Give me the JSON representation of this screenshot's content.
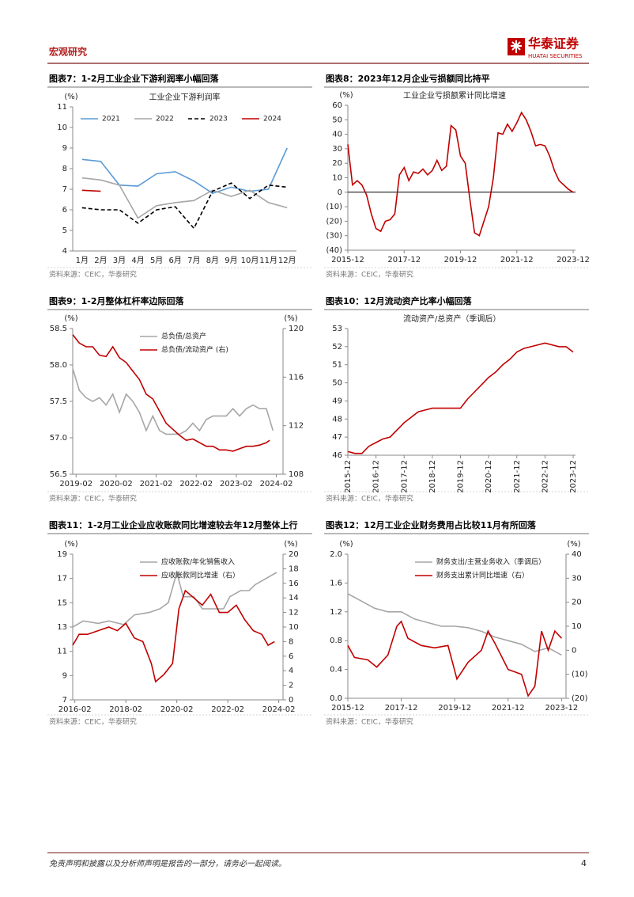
{
  "header": {
    "section": "宏观研究",
    "logo_name": "华泰证券",
    "logo_sub": "HUATAI SECURITIES"
  },
  "footer": {
    "disclaimer": "免责声明和披露以及分析师声明是报告的一部分，请务必一起阅读。",
    "page": 4
  },
  "chart_data": [
    {
      "type": "line",
      "figure_title": "图表7：1-2月工业企业下游利润率小幅回落",
      "title": "工业企业下游利润率",
      "source": "资料来源：CEIC，华泰研究",
      "y_unit": "(%)",
      "categories": [
        "1月",
        "2月",
        "3月",
        "4月",
        "5月",
        "6月",
        "7月",
        "8月",
        "9月",
        "10月",
        "11月",
        "12月"
      ],
      "ylim": [
        4,
        11
      ],
      "yticks": [
        4,
        5,
        6,
        7,
        8,
        9,
        10,
        11
      ],
      "legend": "top",
      "series": [
        {
          "name": "2021",
          "color": "#5b9bd5",
          "values": [
            8.45,
            8.35,
            7.2,
            7.15,
            7.75,
            7.85,
            7.4,
            6.8,
            7.1,
            6.9,
            7.0,
            9.0
          ]
        },
        {
          "name": "2022",
          "color": "#a6a6a6",
          "values": [
            7.55,
            7.45,
            7.2,
            5.6,
            6.2,
            6.35,
            6.45,
            6.95,
            6.65,
            6.95,
            6.35,
            6.1
          ]
        },
        {
          "name": "2023",
          "color": "#000000",
          "style": "dashed",
          "values": [
            6.1,
            6.0,
            6.0,
            5.35,
            6.0,
            6.15,
            5.1,
            6.9,
            7.3,
            6.55,
            7.2,
            7.1
          ]
        },
        {
          "name": "2024",
          "color": "#c00000",
          "values": [
            6.95,
            6.9,
            null,
            null,
            null,
            null,
            null,
            null,
            null,
            null,
            null,
            null
          ]
        }
      ]
    },
    {
      "type": "line",
      "figure_title": "图表8：2023年12月企业亏损额同比持平",
      "title": "工业企业亏损额累计同比增速",
      "source": "资料来源：CEIC，华泰研究",
      "y_unit": "(%)",
      "xlim": [
        "2015-12",
        "2024-01"
      ],
      "xticks": [
        "2015-12",
        "2017-12",
        "2019-12",
        "2021-12",
        "2023-12"
      ],
      "ylim": [
        -40,
        60
      ],
      "yticks": [
        {
          "value": -40,
          "label": "(40)"
        },
        {
          "value": -30,
          "label": "(30)"
        },
        {
          "value": -20,
          "label": "(20)"
        },
        {
          "value": -10,
          "label": "(10)"
        },
        0,
        10,
        20,
        30,
        40,
        50,
        60
      ],
      "series": [
        {
          "color": "#c00000",
          "x": [
            "2015-12",
            "2016-02",
            "2016-04",
            "2016-06",
            "2016-08",
            "2016-10",
            "2016-12",
            "2017-02",
            "2017-04",
            "2017-06",
            "2017-08",
            "2017-10",
            "2017-12",
            "2018-02",
            "2018-04",
            "2018-06",
            "2018-08",
            "2018-10",
            "2018-12",
            "2019-02",
            "2019-04",
            "2019-06",
            "2019-08",
            "2019-10",
            "2019-12",
            "2020-02",
            "2020-04",
            "2020-06",
            "2020-08",
            "2020-10",
            "2020-12",
            "2021-02",
            "2021-04",
            "2021-06",
            "2021-08",
            "2021-10",
            "2021-12",
            "2022-02",
            "2022-04",
            "2022-06",
            "2022-08",
            "2022-10",
            "2022-12",
            "2023-02",
            "2023-04",
            "2023-06",
            "2023-08",
            "2023-10",
            "2023-12"
          ],
          "values": [
            33,
            5,
            8,
            5,
            -2,
            -15,
            -25,
            -27,
            -20,
            -19,
            -15,
            12,
            17,
            8,
            14,
            13,
            16,
            12,
            15,
            22,
            15,
            18,
            46,
            43,
            25,
            20,
            -5,
            -28,
            -30,
            -20,
            -10,
            10,
            41,
            40,
            47,
            42,
            48,
            55,
            50,
            42,
            32,
            33,
            32,
            25,
            15,
            8,
            5,
            2,
            0
          ]
        }
      ]
    },
    {
      "type": "line",
      "figure_title": "图表9：1-2月整体杠杆率边际回落",
      "source": "资料来源：CEIC，华泰研究",
      "y_unit": "(%)",
      "y2_unit": "(%)",
      "xlim": [
        "2019-01",
        "2024-04"
      ],
      "xticks": [
        "2019-02",
        "2020-02",
        "2021-02",
        "2022-02",
        "2023-02",
        "2024-02"
      ],
      "ylim": [
        56.5,
        58.5
      ],
      "yticks": [
        56.5,
        {
          "value": 57,
          "label": "57.0"
        },
        57.5,
        {
          "value": 58,
          "label": "58.0"
        },
        58.5
      ],
      "y2lim": [
        108,
        120
      ],
      "y2ticks": [
        108,
        112,
        116,
        120
      ],
      "legend": "upper left",
      "series": [
        {
          "name": "总负债/总资产",
          "color": "#a6a6a6",
          "x": [
            "2019-01",
            "2019-03",
            "2019-05",
            "2019-07",
            "2019-09",
            "2019-11",
            "2020-01",
            "2020-03",
            "2020-05",
            "2020-07",
            "2020-09",
            "2020-11",
            "2021-01",
            "2021-03",
            "2021-05",
            "2021-07",
            "2021-09",
            "2021-11",
            "2022-01",
            "2022-03",
            "2022-05",
            "2022-07",
            "2022-09",
            "2022-11",
            "2023-01",
            "2023-03",
            "2023-05",
            "2023-07",
            "2023-09",
            "2023-11",
            "2024-01"
          ],
          "values": [
            57.95,
            57.65,
            57.55,
            57.5,
            57.55,
            57.45,
            57.6,
            57.35,
            57.6,
            57.5,
            57.35,
            57.1,
            57.3,
            57.1,
            57.05,
            57.05,
            57.05,
            57.1,
            57.2,
            57.1,
            57.25,
            57.3,
            57.3,
            57.3,
            57.4,
            57.3,
            57.4,
            57.45,
            57.4,
            57.4,
            57.1
          ]
        },
        {
          "name": "总负债/流动资产 (右)",
          "color": "#c00000",
          "axis": "y2",
          "x": [
            "2019-01",
            "2019-03",
            "2019-05",
            "2019-07",
            "2019-09",
            "2019-11",
            "2020-01",
            "2020-03",
            "2020-05",
            "2020-07",
            "2020-09",
            "2020-11",
            "2021-01",
            "2021-03",
            "2021-05",
            "2021-07",
            "2021-09",
            "2021-11",
            "2022-01",
            "2022-03",
            "2022-05",
            "2022-07",
            "2022-09",
            "2022-11",
            "2023-01",
            "2023-03",
            "2023-05",
            "2023-07",
            "2023-09",
            "2023-11",
            "2023-12"
          ],
          "values": [
            119.5,
            118.8,
            118.5,
            118.5,
            117.8,
            117.7,
            118.5,
            117.6,
            117.2,
            116.5,
            115.8,
            114.6,
            114.2,
            113.2,
            112.2,
            111.7,
            111.2,
            110.8,
            110.9,
            110.6,
            110.3,
            110.3,
            110.0,
            110.0,
            109.9,
            110.1,
            110.3,
            110.3,
            110.4,
            110.6,
            110.8
          ]
        }
      ]
    },
    {
      "type": "line",
      "figure_title": "图表10：12月流动资产比率小幅回落",
      "title": "流动资产/总资产（季调后）",
      "source": "资料来源：CEIC，华泰研究",
      "xlim": [
        "2015-12",
        "2024-01"
      ],
      "xticks": [
        "2015-12",
        "2016-12",
        "2017-12",
        "2018-12",
        "2019-12",
        "2020-12",
        "2021-12",
        "2022-12",
        "2023-12"
      ],
      "ylim": [
        46,
        53
      ],
      "yticks": [
        46,
        47,
        48,
        49,
        50,
        51,
        52,
        53
      ],
      "series": [
        {
          "color": "#c00000",
          "x": [
            "2015-12",
            "2016-03",
            "2016-06",
            "2016-09",
            "2016-12",
            "2017-03",
            "2017-06",
            "2017-09",
            "2017-12",
            "2018-03",
            "2018-06",
            "2018-09",
            "2018-12",
            "2019-03",
            "2019-06",
            "2019-09",
            "2019-12",
            "2020-03",
            "2020-06",
            "2020-09",
            "2020-12",
            "2021-03",
            "2021-06",
            "2021-09",
            "2021-12",
            "2022-03",
            "2022-06",
            "2022-09",
            "2022-12",
            "2023-03",
            "2023-06",
            "2023-09",
            "2023-12"
          ],
          "values": [
            46.2,
            46.1,
            46.1,
            46.5,
            46.7,
            46.9,
            47.0,
            47.4,
            47.8,
            48.1,
            48.4,
            48.5,
            48.6,
            48.6,
            48.6,
            48.6,
            48.6,
            49.1,
            49.5,
            49.9,
            50.3,
            50.6,
            51.0,
            51.3,
            51.7,
            51.9,
            52.0,
            52.1,
            52.2,
            52.1,
            52.0,
            52.0,
            51.7
          ]
        }
      ]
    },
    {
      "type": "line",
      "figure_title": "图表11：1-2月工业企业应收账款同比增速较去年12月整体上行",
      "source": "资料来源：CEIC，华泰研究",
      "y_unit": "(%)",
      "y2_unit": "(%)",
      "xlim": [
        "2016-01",
        "2024-04"
      ],
      "xticks": [
        "2016-02",
        "2018-02",
        "2020-02",
        "2022-02",
        "2024-02"
      ],
      "ylim": [
        7,
        19
      ],
      "yticks": [
        7,
        9,
        11,
        13,
        15,
        17,
        19
      ],
      "y2lim": [
        0,
        20
      ],
      "y2ticks": [
        0,
        2,
        4,
        6,
        8,
        10,
        12,
        14,
        16,
        18,
        20
      ],
      "legend": "upper left",
      "series": [
        {
          "name": "应收账款/年化销售收入",
          "color": "#a6a6a6",
          "x": [
            "2016-01",
            "2016-06",
            "2017-01",
            "2017-06",
            "2018-01",
            "2018-06",
            "2019-01",
            "2019-06",
            "2019-10",
            "2020-02",
            "2020-05",
            "2020-10",
            "2021-02",
            "2021-06",
            "2021-12",
            "2022-03",
            "2022-08",
            "2022-12",
            "2023-03",
            "2023-08",
            "2024-01"
          ],
          "values": [
            13.0,
            13.5,
            13.3,
            13.5,
            13.2,
            14.0,
            14.2,
            14.5,
            15.0,
            17.5,
            15.5,
            15.5,
            14.5,
            14.5,
            14.5,
            15.5,
            16.0,
            16.0,
            16.5,
            17.0,
            17.5
          ]
        },
        {
          "name": "应收账款同比增速（右）",
          "color": "#c00000",
          "axis": "y2",
          "x": [
            "2016-01",
            "2016-04",
            "2016-08",
            "2017-01",
            "2017-06",
            "2017-10",
            "2018-02",
            "2018-06",
            "2018-10",
            "2019-02",
            "2019-04",
            "2019-08",
            "2019-12",
            "2020-03",
            "2020-06",
            "2020-10",
            "2021-02",
            "2021-06",
            "2021-10",
            "2022-02",
            "2022-06",
            "2022-10",
            "2023-02",
            "2023-06",
            "2023-09",
            "2023-12"
          ],
          "values": [
            7.5,
            9.0,
            9.0,
            9.5,
            10.0,
            9.5,
            10.5,
            8.5,
            8.0,
            5.0,
            2.5,
            3.5,
            5.0,
            12.5,
            15.0,
            14.0,
            13.0,
            14.5,
            12.0,
            12.0,
            13.0,
            11.0,
            9.5,
            9.0,
            7.5,
            8.0
          ]
        }
      ]
    },
    {
      "type": "line",
      "figure_title": "图表12：12月工业企业财务费用占比较11月有所回落",
      "source": "资料来源：CEIC，华泰研究",
      "y_unit": "(%)",
      "y2_unit": "(%)",
      "xlim": [
        "2015-12",
        "2024-02"
      ],
      "xticks": [
        "2015-12",
        "2017-12",
        "2019-12",
        "2021-12",
        "2023-12"
      ],
      "ylim": [
        0,
        2
      ],
      "yticks": [
        {
          "value": 0,
          "label": "0.0"
        },
        0.4,
        0.8,
        1.2,
        1.6,
        {
          "value": 2,
          "label": "2.0"
        }
      ],
      "y2lim": [
        -20,
        40
      ],
      "y2ticks": [
        {
          "value": -20,
          "label": "(20)"
        },
        {
          "value": -10,
          "label": "(10)"
        },
        0,
        10,
        20,
        30,
        40
      ],
      "legend": "upper left",
      "series": [
        {
          "name": "财务支出/主营业务收入（季调后）",
          "color": "#a6a6a6",
          "x": [
            "2015-12",
            "2016-06",
            "2016-12",
            "2017-06",
            "2017-12",
            "2018-06",
            "2018-12",
            "2019-06",
            "2019-12",
            "2020-06",
            "2020-12",
            "2021-06",
            "2021-12",
            "2022-06",
            "2022-12",
            "2023-06",
            "2023-12"
          ],
          "values": [
            1.45,
            1.35,
            1.25,
            1.2,
            1.2,
            1.1,
            1.05,
            1.0,
            1.0,
            0.98,
            0.93,
            0.85,
            0.8,
            0.75,
            0.65,
            0.7,
            0.6
          ]
        },
        {
          "name": "财务支出累计同比增速（右）",
          "color": "#c00000",
          "axis": "y2",
          "x": [
            "2015-12",
            "2016-03",
            "2016-09",
            "2017-01",
            "2017-06",
            "2017-10",
            "2017-12",
            "2018-03",
            "2018-09",
            "2019-03",
            "2019-09",
            "2020-01",
            "2020-06",
            "2020-12",
            "2021-03",
            "2021-06",
            "2021-12",
            "2022-06",
            "2022-09",
            "2022-12",
            "2023-03",
            "2023-06",
            "2023-09",
            "2023-12"
          ],
          "values": [
            2,
            -3,
            -4,
            -7,
            -2,
            10,
            12,
            5,
            2,
            1,
            2,
            -12,
            -5,
            0,
            8,
            3,
            -8,
            -10,
            -19,
            -15,
            8,
            0,
            8,
            5
          ]
        }
      ]
    }
  ]
}
